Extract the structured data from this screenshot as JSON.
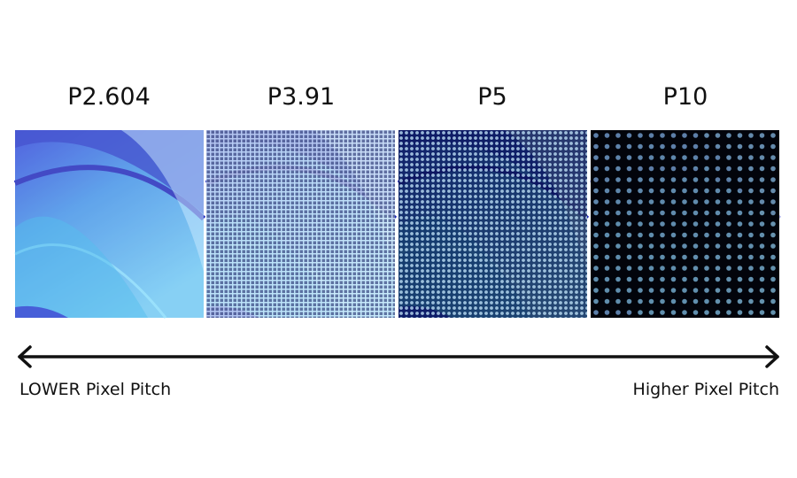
{
  "panels": [
    {
      "label": "P2.604"
    },
    {
      "label": "P3.91"
    },
    {
      "label": "P5"
    },
    {
      "label": "P10"
    }
  ],
  "scale": {
    "left_label": "LOWER Pixel Pitch",
    "right_label": "Higher Pixel Pitch"
  }
}
